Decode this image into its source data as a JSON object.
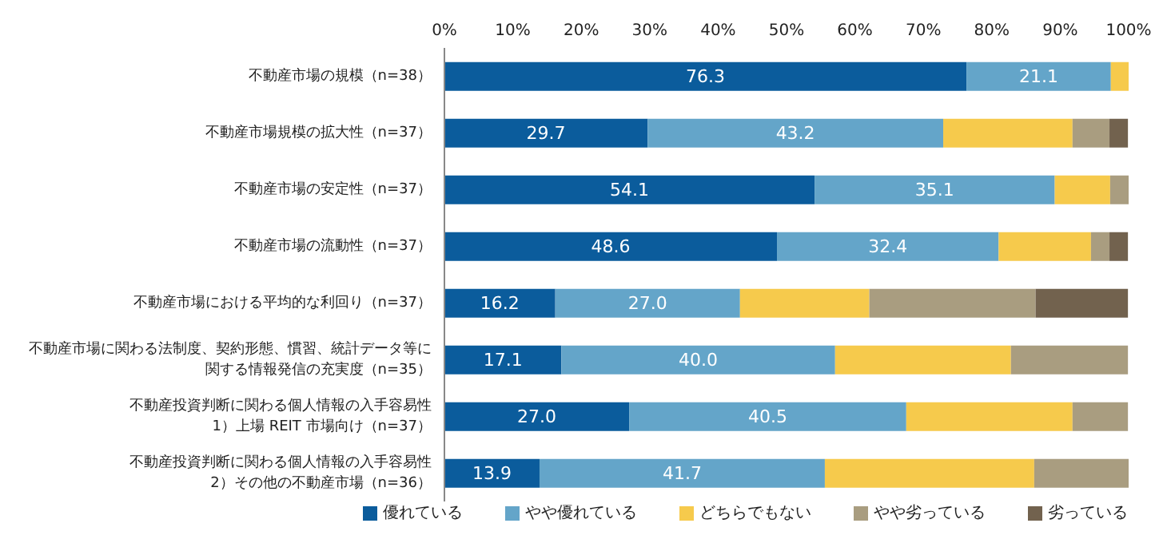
{
  "chart_data": {
    "type": "bar",
    "orientation": "horizontal",
    "stacked": true,
    "categories": [
      "不動産市場の規模（n=38）",
      "不動産市場規模の拡大性（n=37）",
      "不動産市場の安定性（n=37）",
      "不動産市場の流動性（n=37）",
      "不動産市場における平均的な利回り（n=37）",
      "不動産市場に関わる法制度、契約形態、慣習、統計データ等に関する情報発信の充実度（n=35）",
      "不動産投資判断に関わる個人情報の入手容易性 1）上場 REIT 市場向け（n=37）",
      "不動産投資判断に関わる個人情報の入手容易性 2）その他の不動産市場（n=36）"
    ],
    "series": [
      {
        "name": "優れている",
        "color": "#0b5c9c",
        "values": [
          76.3,
          29.7,
          54.1,
          48.6,
          16.2,
          17.1,
          27.0,
          13.9
        ],
        "value_labels": [
          "76.3",
          "29.7",
          "54.1",
          "48.6",
          "16.2",
          "17.1",
          "27.0",
          "13.9"
        ]
      },
      {
        "name": "やや優れている",
        "color": "#64a5c9",
        "values": [
          21.1,
          43.2,
          35.1,
          32.4,
          27.0,
          40.0,
          40.5,
          41.7
        ],
        "value_labels": [
          "21.1",
          "43.2",
          "35.1",
          "32.4",
          "27.0",
          "40.0",
          "40.5",
          "41.7"
        ]
      },
      {
        "name": "どちらでもない",
        "color": "#f6ca4c",
        "values": [
          2.6,
          18.9,
          8.1,
          13.5,
          18.9,
          25.7,
          24.3,
          30.6
        ]
      },
      {
        "name": "やや劣っている",
        "color": "#a99d80",
        "values": [
          0,
          5.4,
          2.7,
          2.7,
          24.3,
          17.1,
          8.1,
          13.9
        ]
      },
      {
        "name": "劣っている",
        "color": "#72624e",
        "values": [
          0,
          2.7,
          0,
          2.7,
          13.5,
          0,
          0,
          0
        ]
      }
    ],
    "xlim": [
      0,
      100
    ],
    "xticks": [
      {
        "value": 0,
        "label": "0%"
      },
      {
        "value": 10,
        "label": "10%"
      },
      {
        "value": 20,
        "label": "20%"
      },
      {
        "value": 30,
        "label": "30%"
      },
      {
        "value": 40,
        "label": "40%"
      },
      {
        "value": 50,
        "label": "50%"
      },
      {
        "value": 60,
        "label": "60%"
      },
      {
        "value": 70,
        "label": "70%"
      },
      {
        "value": 80,
        "label": "80%"
      },
      {
        "value": 90,
        "label": "90%"
      },
      {
        "value": 100,
        "label": "100%"
      }
    ],
    "grid": false,
    "legend": "bottom"
  }
}
